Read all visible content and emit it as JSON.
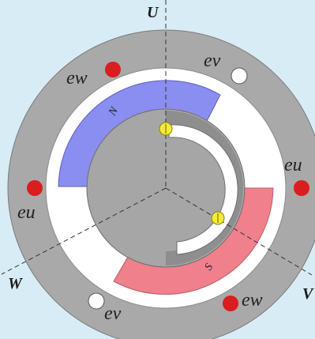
{
  "axes": {
    "u": "U",
    "v": "V",
    "w": "W"
  },
  "poles": {
    "north": "N",
    "south": "S"
  },
  "emf_labels": {
    "ev_top": "ev",
    "ew_top": "ew",
    "eu_right": "eu",
    "eu_left": "eu",
    "ev_bottom": "ev",
    "ew_bottom": "ew"
  },
  "colors": {
    "background": "#d8ecf6",
    "stator": "#a9a9a9",
    "gap": "#ffffff",
    "north_pole": "#8a8ef0",
    "south_pole": "#f0808c",
    "rotor": "#a6a6a6",
    "rotor_ring": "#8e8e8e",
    "coil_side_active": "#d81e1e",
    "coil_side_passive": "#ffffff",
    "sensor": "#f4ea3a"
  }
}
